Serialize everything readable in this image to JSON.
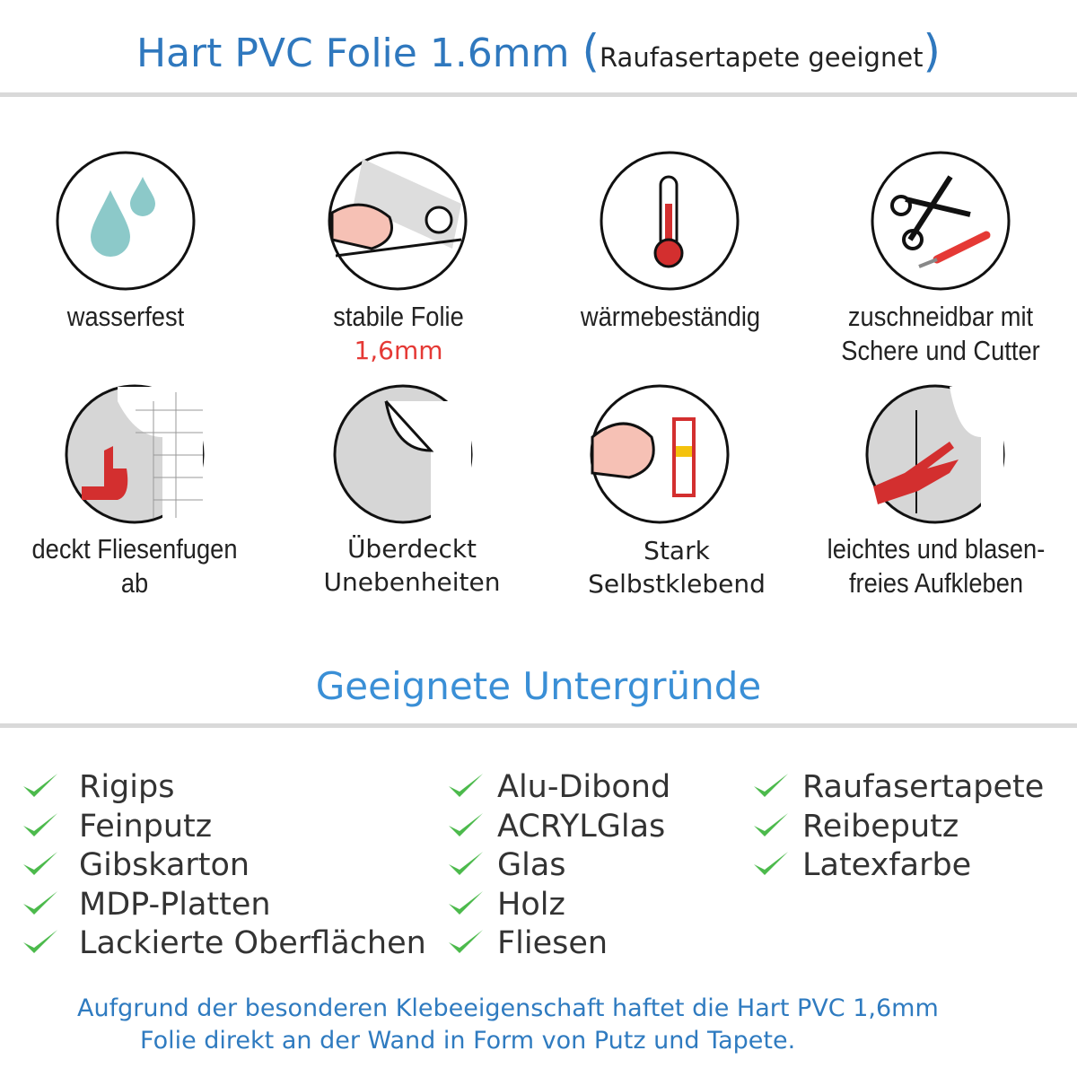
{
  "header": {
    "title_main": "Hart PVC Folie 1.6mm",
    "title_paren_open": "(",
    "title_sub": "Raufasertapete geeignet",
    "title_paren_close": ")"
  },
  "features": [
    {
      "icon": "water-drops-icon",
      "label": "wasserfest"
    },
    {
      "icon": "strong-arm-foil-icon",
      "label": "stabile Folie",
      "sublabel": "1,6mm"
    },
    {
      "icon": "thermometer-icon",
      "label": "wärmebeständig"
    },
    {
      "icon": "scissors-cutter-icon",
      "label_line1": "zuschneidbar mit",
      "label_line2": "Schere und Cutter"
    },
    {
      "icon": "tile-thumbs-up-icon",
      "label": "deckt Fliesenfugen ab"
    },
    {
      "icon": "foil-peel-icon",
      "label_line1": "Überdeckt",
      "label_line2": "Unebenheiten"
    },
    {
      "icon": "strong-arm-glue-icon",
      "label_line1": "Stark",
      "label_line2": "Selbstklebend"
    },
    {
      "icon": "hand-smoothing-icon",
      "label_line1": "leichtes und blasen-",
      "label_line2": "freies Aufkleben"
    }
  ],
  "surfaces": {
    "title": "Geeignete Untergründe",
    "col1": [
      "Rigips",
      "Feinputz",
      "Gibskarton",
      "MDP-Platten",
      "Lackierte Oberflächen"
    ],
    "col2": [
      "Alu-Dibond",
      "ACRYLGlas",
      "Glas",
      "Holz",
      "Fliesen"
    ],
    "col3": [
      "Raufasertapete",
      "Reibeputz",
      "Latexfarbe"
    ]
  },
  "footer": {
    "line1": "Aufgrund der besonderen Klebeeigenschaft haftet die Hart PVC 1,6mm",
    "line2": "Folie direkt an der Wand in Form von Putz und Tapete."
  },
  "colors": {
    "title": "#2f78be",
    "check": "#4cba4c",
    "accent_red": "#e53935",
    "drop": "#8cc9c9"
  }
}
